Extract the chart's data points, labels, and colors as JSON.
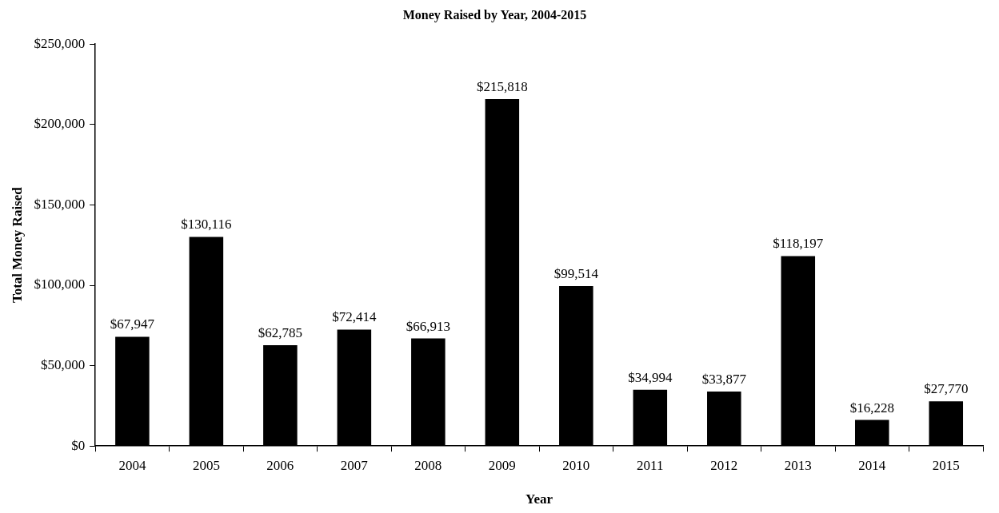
{
  "chart_data": {
    "type": "bar",
    "title": "Money Raised by Year, 2004-2015",
    "xlabel": "Year",
    "ylabel": "Total Money Raised",
    "categories": [
      "2004",
      "2005",
      "2006",
      "2007",
      "2008",
      "2009",
      "2010",
      "2011",
      "2012",
      "2013",
      "2014",
      "2015"
    ],
    "values": [
      67947,
      130116,
      62785,
      72414,
      66913,
      215818,
      99514,
      34994,
      33877,
      118197,
      16228,
      27770
    ],
    "value_labels": [
      "$67,947",
      "$130,116",
      "$62,785",
      "$72,414",
      "$66,913",
      "$215,818",
      "$99,514",
      "$34,994",
      "$33,877",
      "$118,197",
      "$16,228",
      "$27,770"
    ],
    "color": "#000000",
    "ylim": [
      0,
      250000
    ],
    "yticks": [
      {
        "value": 0,
        "label": "$0"
      },
      {
        "value": 50000,
        "label": "$50,000"
      },
      {
        "value": 100000,
        "label": "$100,000"
      },
      {
        "value": 150000,
        "label": "$150,000"
      },
      {
        "value": 200000,
        "label": "$200,000"
      },
      {
        "value": 250000,
        "label": "$250,000"
      }
    ]
  }
}
